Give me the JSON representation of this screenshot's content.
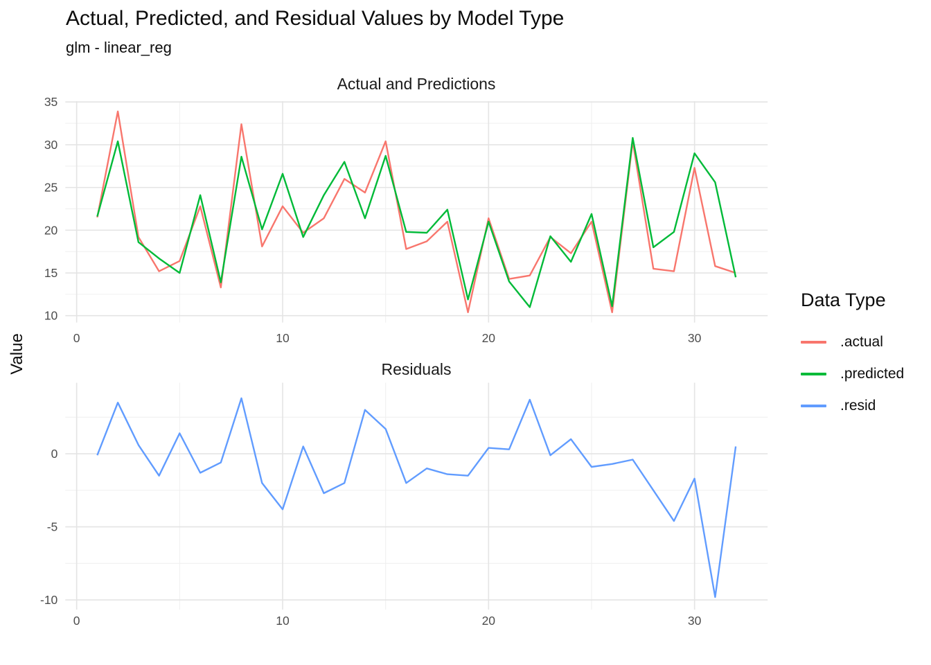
{
  "figure": {
    "title": "Actual, Predicted, and Residual Values by Model Type",
    "subtitle": "glm - linear_reg",
    "y_axis_title": "Value"
  },
  "legend": {
    "title": "Data Type",
    "entries": [
      {
        "label": ".actual",
        "color": "#F8766D"
      },
      {
        "label": ".predicted",
        "color": "#00BA38"
      },
      {
        "label": ".resid",
        "color": "#619CFF"
      }
    ]
  },
  "chart_data": [
    {
      "type": "line",
      "title": "Actual and Predictions",
      "xlabel": "",
      "ylabel": "Value",
      "x": [
        1,
        2,
        3,
        4,
        5,
        6,
        7,
        8,
        9,
        10,
        11,
        12,
        13,
        14,
        15,
        16,
        17,
        18,
        19,
        20,
        21,
        22,
        23,
        24,
        25,
        26,
        27,
        28,
        29,
        30,
        31,
        32
      ],
      "series": [
        {
          "name": ".actual",
          "color": "#F8766D",
          "values": [
            21.5,
            33.9,
            19.2,
            15.2,
            16.4,
            22.8,
            13.3,
            32.4,
            18.1,
            22.8,
            19.7,
            21.4,
            26.0,
            24.4,
            30.4,
            17.8,
            18.7,
            21.0,
            10.4,
            21.4,
            14.3,
            14.7,
            19.2,
            17.3,
            21.0,
            10.4,
            30.4,
            15.5,
            15.2,
            27.3,
            15.8,
            15.0
          ]
        },
        {
          "name": ".predicted",
          "color": "#00BA38",
          "values": [
            21.6,
            30.4,
            18.6,
            16.7,
            15.0,
            24.1,
            13.9,
            28.6,
            20.1,
            26.6,
            19.2,
            24.1,
            28.0,
            21.4,
            28.7,
            19.8,
            19.7,
            22.4,
            11.9,
            21.0,
            14.0,
            11.0,
            19.3,
            16.3,
            21.9,
            11.1,
            30.8,
            18.0,
            19.8,
            29.0,
            25.6,
            14.5
          ]
        }
      ],
      "x_ticks": [
        0,
        10,
        20,
        30
      ],
      "y_ticks": [
        35,
        30,
        25,
        20,
        15,
        10
      ],
      "xlim": [
        -0.55,
        33.55
      ],
      "ylim": [
        9.2,
        35.1
      ],
      "grid": true,
      "legend_position": "right"
    },
    {
      "type": "line",
      "title": "Residuals",
      "xlabel": "",
      "ylabel": "Value",
      "x": [
        1,
        2,
        3,
        4,
        5,
        6,
        7,
        8,
        9,
        10,
        11,
        12,
        13,
        14,
        15,
        16,
        17,
        18,
        19,
        20,
        21,
        22,
        23,
        24,
        25,
        26,
        27,
        28,
        29,
        30,
        31,
        32
      ],
      "series": [
        {
          "name": ".resid",
          "color": "#619CFF",
          "values": [
            -0.1,
            3.5,
            0.6,
            -1.5,
            1.4,
            -1.3,
            -0.6,
            3.8,
            -2.0,
            -3.8,
            0.5,
            -2.7,
            -2.0,
            3.0,
            1.7,
            -2.0,
            -1.0,
            -1.4,
            -1.5,
            0.4,
            0.3,
            3.7,
            -0.1,
            1.0,
            -0.9,
            -0.7,
            -0.4,
            -2.5,
            -4.6,
            -1.7,
            -9.8,
            0.5
          ]
        }
      ],
      "x_ticks": [
        0,
        10,
        20,
        30
      ],
      "y_ticks": [
        0,
        -5,
        -10
      ],
      "xlim": [
        -0.55,
        33.55
      ],
      "ylim": [
        -10.66,
        4.86
      ],
      "grid": true,
      "legend_position": "right"
    }
  ]
}
